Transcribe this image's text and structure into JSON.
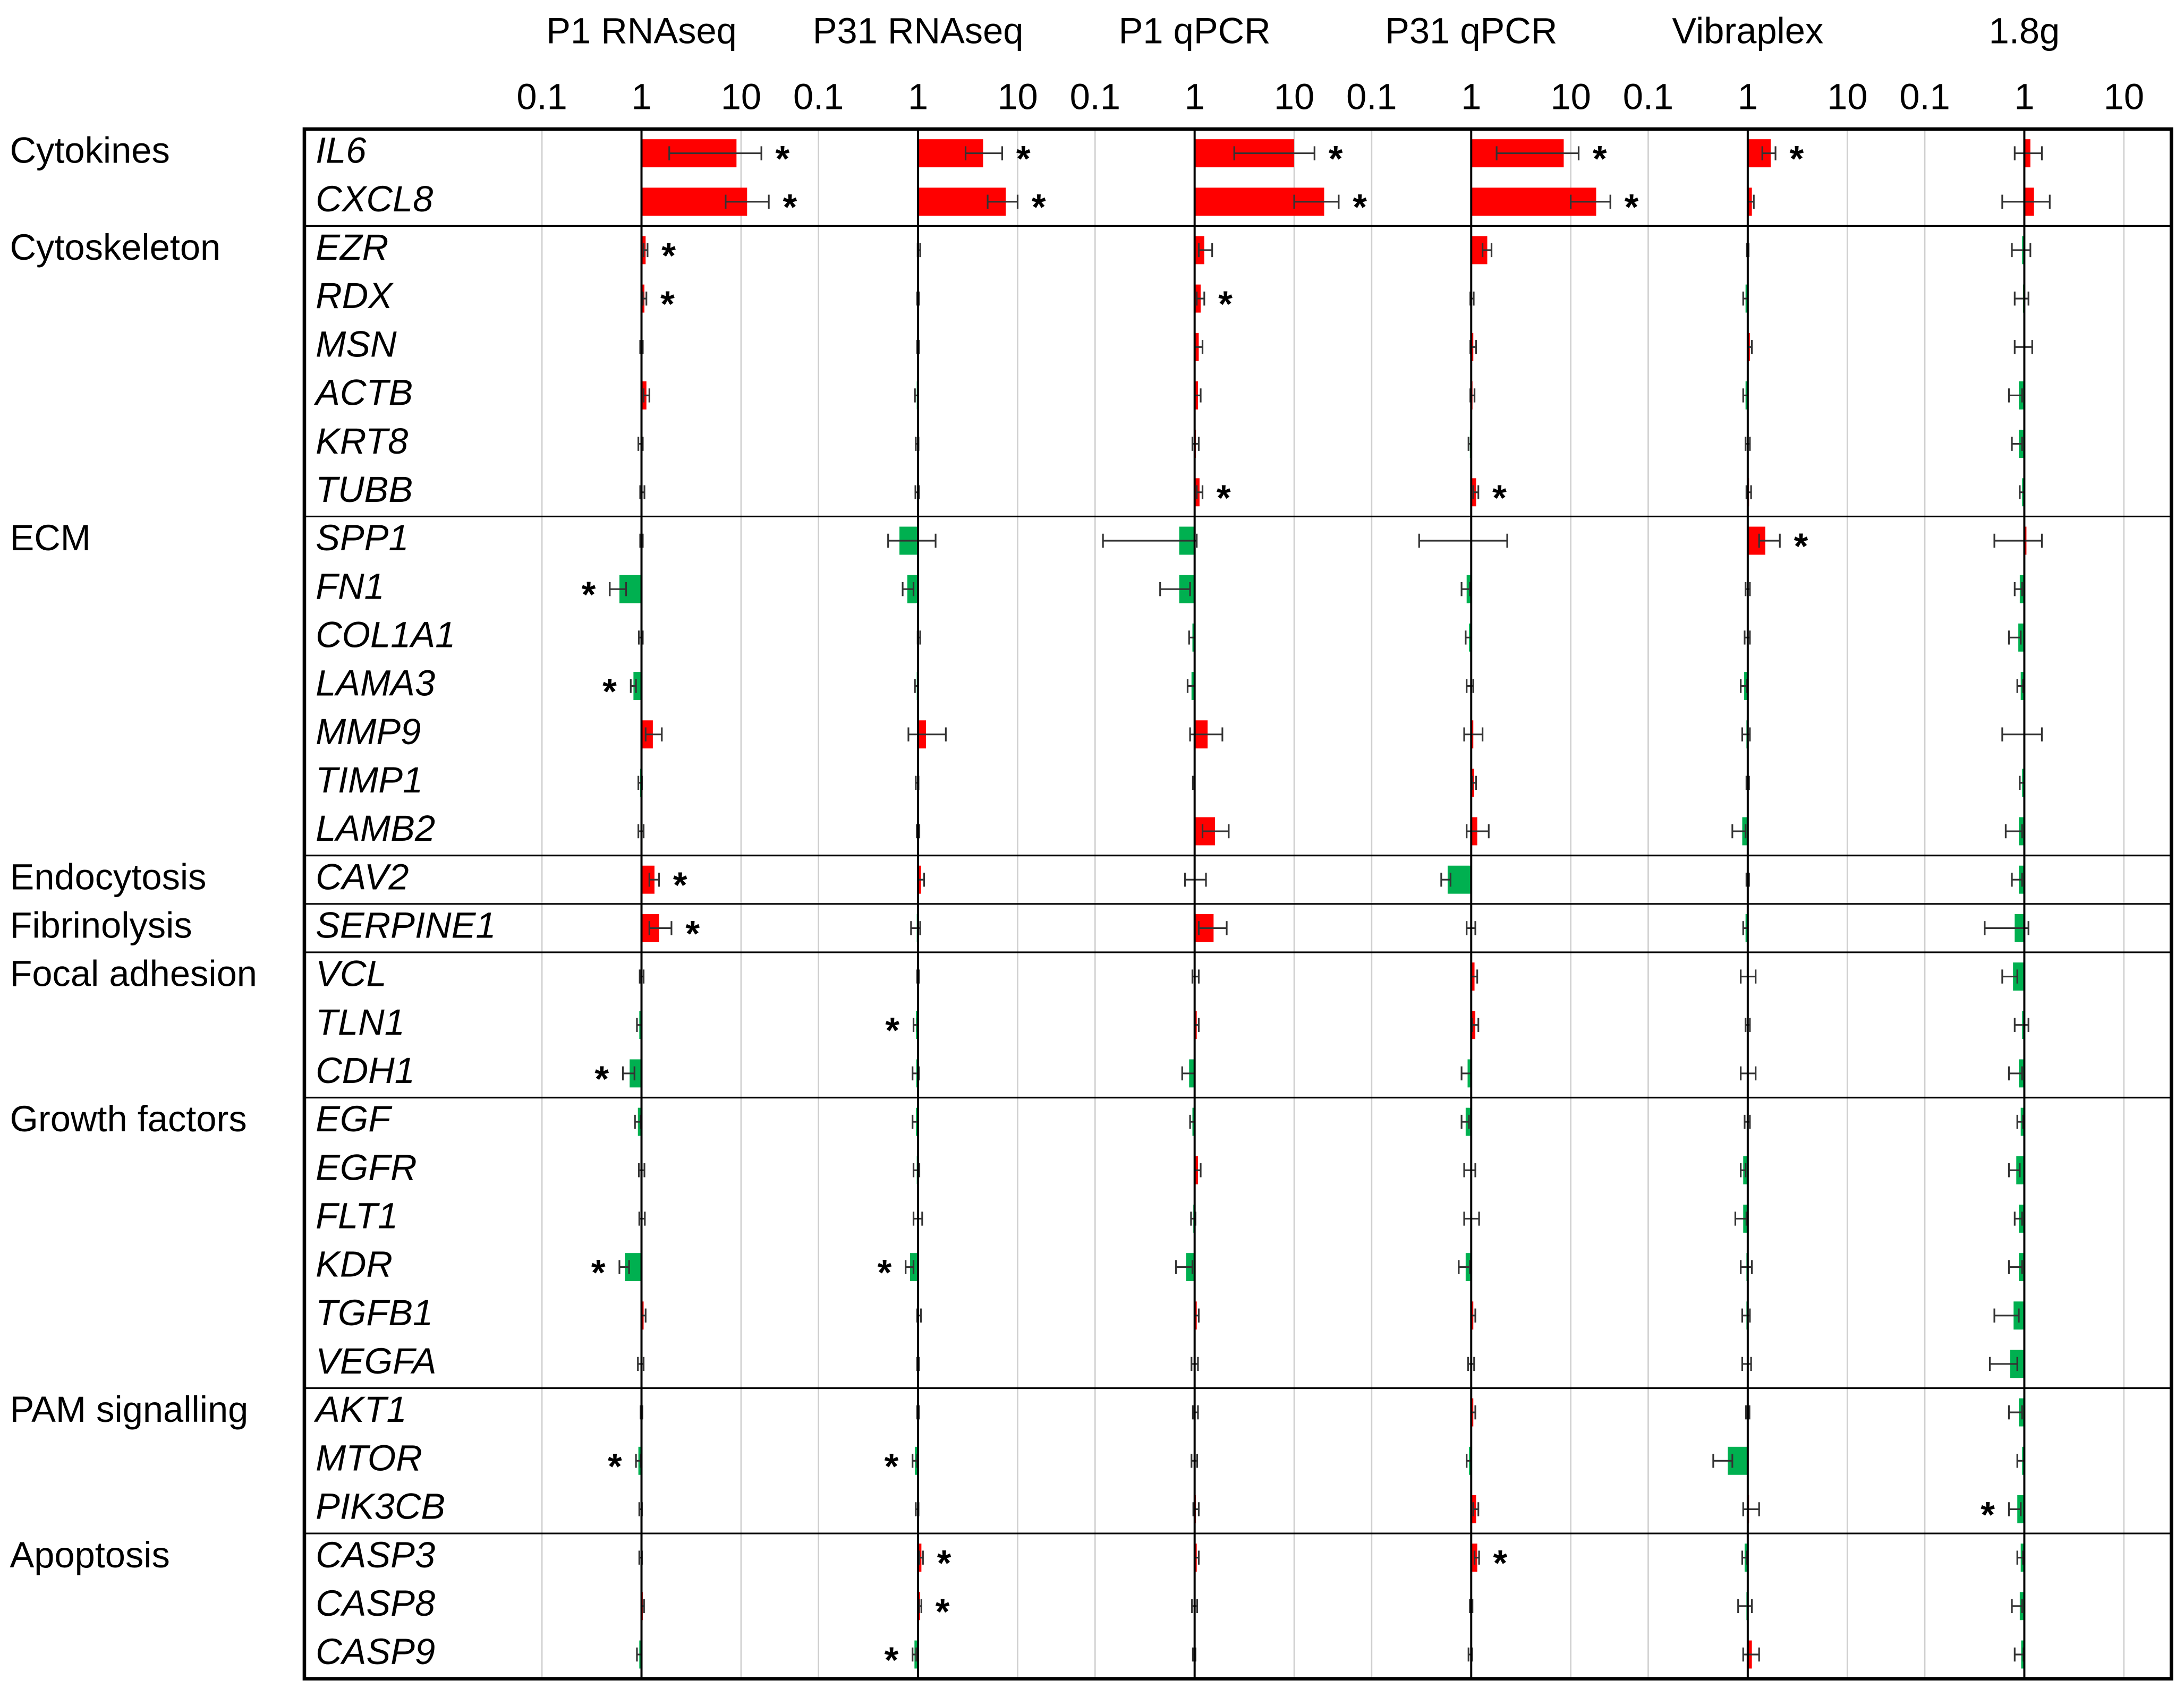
{
  "chart_data": {
    "type": "bar",
    "orientation": "horizontal",
    "x_scale": "log",
    "xlim": [
      0.05,
      30
    ],
    "xticks": [
      0.1,
      1,
      10
    ],
    "grid": true,
    "colors": {
      "increase": "#ff0000",
      "decrease": "#00b050"
    },
    "significance_marker": "*",
    "categories": [
      "IL6",
      "CXCL8",
      "EZR",
      "RDX",
      "MSN",
      "ACTB",
      "KRT8",
      "TUBB",
      "SPP1",
      "FN1",
      "COL1A1",
      "LAMA3",
      "MMP9",
      "TIMP1",
      "LAMB2",
      "CAV2",
      "SERPINE1",
      "VCL",
      "TLN1",
      "CDH1",
      "EGF",
      "EGFR",
      "FLT1",
      "KDR",
      "TGFB1",
      "VEGFA",
      "AKT1",
      "MTOR",
      "PIK3CB",
      "CASP3",
      "CASP8",
      "CASP9"
    ],
    "groups": [
      "Cytokines",
      "Cytokines",
      "Cytoskeleton",
      "Cytoskeleton",
      "Cytoskeleton",
      "Cytoskeleton",
      "Cytoskeleton",
      "Cytoskeleton",
      "ECM",
      "ECM",
      "ECM",
      "ECM",
      "ECM",
      "ECM",
      "ECM",
      "Endocytosis",
      "Fibrinolysis",
      "Focal adhesion",
      "Focal adhesion",
      "Focal adhesion",
      "Growth factors",
      "Growth factors",
      "Growth factors",
      "Growth factors",
      "Growth factors",
      "Growth factors",
      "PAM signalling",
      "PAM signalling",
      "PAM signalling",
      "Apoptosis",
      "Apoptosis",
      "Apoptosis"
    ],
    "series": [
      {
        "name": "P1 RNAseq",
        "values": [
          9,
          11.5,
          1.1,
          1.07,
          1.0,
          1.12,
          0.98,
          1.02,
          1.0,
          0.6,
          0.98,
          0.83,
          1.3,
          0.97,
          0.98,
          1.35,
          1.5,
          1.0,
          0.95,
          0.76,
          0.92,
          1.0,
          1.0,
          0.68,
          1.05,
          0.98,
          1.0,
          0.93,
          0.98,
          0.98,
          1.03,
          0.95
        ],
        "errors": [
          [
            1.9,
            16
          ],
          [
            7,
            19
          ],
          [
            1.05,
            1.15
          ],
          [
            1.03,
            1.12
          ],
          [
            0.97,
            1.03
          ],
          [
            1.05,
            1.2
          ],
          [
            0.93,
            1.03
          ],
          [
            0.97,
            1.07
          ],
          [
            0.97,
            1.03
          ],
          [
            0.48,
            0.7
          ],
          [
            0.94,
            1.03
          ],
          [
            0.78,
            0.88
          ],
          [
            1.1,
            1.6
          ],
          [
            0.93,
            1.01
          ],
          [
            0.93,
            1.05
          ],
          [
            1.2,
            1.5
          ],
          [
            1.2,
            2.0
          ],
          [
            0.96,
            1.05
          ],
          [
            0.9,
            1.0
          ],
          [
            0.65,
            0.85
          ],
          [
            0.86,
            0.98
          ],
          [
            0.94,
            1.07
          ],
          [
            0.95,
            1.08
          ],
          [
            0.6,
            0.75
          ],
          [
            1.0,
            1.1
          ],
          [
            0.92,
            1.05
          ],
          [
            0.98,
            1.02
          ],
          [
            0.88,
            0.98
          ],
          [
            0.95,
            1.01
          ],
          [
            0.95,
            1.01
          ],
          [
            1.0,
            1.06
          ],
          [
            0.9,
            1.0
          ]
        ],
        "significant": [
          true,
          true,
          true,
          true,
          false,
          false,
          false,
          false,
          false,
          true,
          false,
          true,
          false,
          false,
          false,
          true,
          true,
          false,
          false,
          true,
          false,
          false,
          false,
          true,
          false,
          false,
          false,
          true,
          false,
          false,
          false,
          false
        ]
      },
      {
        "name": "P31 RNAseq",
        "values": [
          4.5,
          7.6,
          1.02,
          1.0,
          1.0,
          0.97,
          0.98,
          0.98,
          0.65,
          0.78,
          1.02,
          0.97,
          1.2,
          0.98,
          1.0,
          1.07,
          0.97,
          1.0,
          0.95,
          0.96,
          0.95,
          0.97,
          0.98,
          0.83,
          1.02,
          1.0,
          1.0,
          0.93,
          0.98,
          1.08,
          1.05,
          0.92
        ],
        "errors": [
          [
            3,
            7
          ],
          [
            5,
            10
          ],
          [
            0.99,
            1.05
          ],
          [
            0.98,
            1.02
          ],
          [
            0.98,
            1.02
          ],
          [
            0.93,
            1.0
          ],
          [
            0.95,
            1.01
          ],
          [
            0.94,
            1.02
          ],
          [
            0.5,
            1.5
          ],
          [
            0.7,
            0.9
          ],
          [
            0.99,
            1.05
          ],
          [
            0.93,
            1.0
          ],
          [
            0.8,
            1.9
          ],
          [
            0.95,
            1.01
          ],
          [
            0.97,
            1.03
          ],
          [
            1.0,
            1.15
          ],
          [
            0.85,
            1.05
          ],
          [
            0.98,
            1.02
          ],
          [
            0.9,
            0.99
          ],
          [
            0.88,
            1.02
          ],
          [
            0.88,
            1.0
          ],
          [
            0.9,
            1.03
          ],
          [
            0.9,
            1.1
          ],
          [
            0.75,
            0.9
          ],
          [
            0.98,
            1.07
          ],
          [
            0.98,
            1.02
          ],
          [
            0.98,
            1.02
          ],
          [
            0.88,
            0.98
          ],
          [
            0.95,
            1.01
          ],
          [
            1.03,
            1.12
          ],
          [
            1.02,
            1.08
          ],
          [
            0.88,
            0.96
          ]
        ],
        "significant": [
          true,
          true,
          false,
          false,
          false,
          false,
          false,
          false,
          false,
          false,
          false,
          false,
          false,
          false,
          false,
          false,
          false,
          false,
          true,
          false,
          false,
          false,
          false,
          true,
          false,
          false,
          false,
          true,
          false,
          true,
          true,
          true
        ]
      },
      {
        "name": "P1 qPCR",
        "values": [
          10,
          20,
          1.25,
          1.15,
          1.1,
          1.08,
          1.03,
          1.12,
          0.7,
          0.7,
          0.95,
          0.93,
          1.35,
          0.98,
          1.6,
          1.02,
          1.55,
          1.0,
          1.05,
          0.88,
          0.95,
          1.08,
          0.97,
          0.82,
          1.05,
          1.0,
          1.02,
          1.0,
          1.03,
          1.05,
          1.0,
          1.0
        ],
        "errors": [
          [
            2.5,
            16
          ],
          [
            10,
            28
          ],
          [
            1.1,
            1.5
          ],
          [
            1.05,
            1.25
          ],
          [
            1.0,
            1.2
          ],
          [
            1.0,
            1.15
          ],
          [
            0.95,
            1.1
          ],
          [
            1.05,
            1.2
          ],
          [
            0.12,
            1.05
          ],
          [
            0.45,
            0.9
          ],
          [
            0.88,
            1.0
          ],
          [
            0.85,
            1.0
          ],
          [
            0.9,
            1.9
          ],
          [
            0.96,
            1.0
          ],
          [
            1.2,
            2.2
          ],
          [
            0.8,
            1.3
          ],
          [
            1.1,
            2.1
          ],
          [
            0.95,
            1.1
          ],
          [
            1.0,
            1.1
          ],
          [
            0.75,
            1.0
          ],
          [
            0.9,
            1.0
          ],
          [
            1.0,
            1.15
          ],
          [
            0.92,
            1.02
          ],
          [
            0.65,
            0.95
          ],
          [
            1.0,
            1.1
          ],
          [
            0.93,
            1.08
          ],
          [
            0.96,
            1.08
          ],
          [
            0.93,
            1.06
          ],
          [
            0.97,
            1.1
          ],
          [
            1.0,
            1.1
          ],
          [
            0.94,
            1.06
          ],
          [
            0.96,
            1.02
          ]
        ],
        "significant": [
          true,
          true,
          false,
          true,
          false,
          false,
          false,
          true,
          false,
          false,
          false,
          false,
          false,
          false,
          false,
          false,
          false,
          false,
          false,
          false,
          false,
          false,
          false,
          false,
          false,
          false,
          false,
          false,
          false,
          false,
          false,
          false
        ]
      },
      {
        "name": "P31 qPCR",
        "values": [
          8.5,
          18,
          1.45,
          1.02,
          1.05,
          1.03,
          0.97,
          1.12,
          1.0,
          0.9,
          0.95,
          0.98,
          1.05,
          1.07,
          1.15,
          0.58,
          1.0,
          1.08,
          1.1,
          0.92,
          0.88,
          1.0,
          1.02,
          0.88,
          1.05,
          1.0,
          1.05,
          0.95,
          1.12,
          1.15,
          1.0,
          0.98
        ],
        "errors": [
          [
            1.8,
            12
          ],
          [
            10,
            25
          ],
          [
            1.3,
            1.6
          ],
          [
            0.98,
            1.06
          ],
          [
            0.98,
            1.12
          ],
          [
            0.98,
            1.08
          ],
          [
            0.94,
            1.0
          ],
          [
            1.05,
            1.18
          ],
          [
            0.3,
            2.3
          ],
          [
            0.8,
            0.97
          ],
          [
            0.88,
            1.0
          ],
          [
            0.9,
            1.05
          ],
          [
            0.85,
            1.3
          ],
          [
            1.02,
            1.12
          ],
          [
            0.9,
            1.5
          ],
          [
            0.5,
            0.62
          ],
          [
            0.9,
            1.1
          ],
          [
            1.0,
            1.15
          ],
          [
            1.02,
            1.18
          ],
          [
            0.8,
            1.0
          ],
          [
            0.8,
            0.95
          ],
          [
            0.85,
            1.1
          ],
          [
            0.85,
            1.2
          ],
          [
            0.75,
            0.97
          ],
          [
            1.0,
            1.1
          ],
          [
            0.93,
            1.07
          ],
          [
            1.0,
            1.1
          ],
          [
            0.9,
            1.0
          ],
          [
            1.05,
            1.18
          ],
          [
            1.08,
            1.2
          ],
          [
            0.97,
            1.03
          ],
          [
            0.94,
            1.02
          ]
        ],
        "significant": [
          true,
          true,
          false,
          false,
          false,
          false,
          false,
          true,
          false,
          false,
          false,
          false,
          false,
          false,
          false,
          false,
          false,
          false,
          false,
          false,
          false,
          false,
          false,
          false,
          false,
          false,
          false,
          false,
          false,
          true,
          false,
          false
        ]
      },
      {
        "name": "Vibraplex",
        "values": [
          1.7,
          1.1,
          1.0,
          0.95,
          1.05,
          0.95,
          1.0,
          1.03,
          1.5,
          1.0,
          1.0,
          0.92,
          0.97,
          1.0,
          0.88,
          1.0,
          0.95,
          1.0,
          1.0,
          1.0,
          1.0,
          0.9,
          0.9,
          0.97,
          0.97,
          0.98,
          1.0,
          0.63,
          1.03,
          0.93,
          0.97,
          1.1
        ],
        "errors": [
          [
            1.4,
            1.9
          ],
          [
            1.0,
            1.15
          ],
          [
            0.98,
            1.02
          ],
          [
            0.9,
            1.0
          ],
          [
            1.0,
            1.1
          ],
          [
            0.9,
            1.0
          ],
          [
            0.95,
            1.05
          ],
          [
            0.97,
            1.08
          ],
          [
            1.3,
            2.1
          ],
          [
            0.95,
            1.05
          ],
          [
            0.93,
            1.05
          ],
          [
            0.85,
            0.98
          ],
          [
            0.88,
            1.05
          ],
          [
            0.97,
            1.03
          ],
          [
            0.7,
            0.95
          ],
          [
            0.97,
            1.03
          ],
          [
            0.9,
            1.0
          ],
          [
            0.85,
            1.2
          ],
          [
            0.95,
            1.05
          ],
          [
            0.85,
            1.2
          ],
          [
            0.93,
            1.05
          ],
          [
            0.85,
            0.95
          ],
          [
            0.75,
            0.97
          ],
          [
            0.85,
            1.1
          ],
          [
            0.88,
            1.05
          ],
          [
            0.88,
            1.08
          ],
          [
            0.96,
            1.04
          ],
          [
            0.45,
            0.7
          ],
          [
            0.9,
            1.3
          ],
          [
            0.88,
            0.98
          ],
          [
            0.8,
            1.1
          ],
          [
            0.9,
            1.3
          ]
        ],
        "significant": [
          true,
          false,
          false,
          false,
          false,
          false,
          false,
          false,
          true,
          false,
          false,
          false,
          false,
          false,
          false,
          false,
          false,
          false,
          false,
          false,
          false,
          false,
          false,
          false,
          false,
          false,
          false,
          false,
          false,
          false,
          false,
          false
        ]
      },
      {
        "name": "1.8g",
        "values": [
          1.15,
          1.25,
          0.95,
          0.97,
          1.0,
          0.88,
          0.88,
          0.95,
          1.05,
          0.9,
          0.87,
          0.92,
          1.0,
          0.95,
          0.88,
          0.88,
          0.8,
          0.77,
          0.95,
          0.88,
          0.92,
          0.83,
          0.88,
          0.88,
          0.78,
          0.72,
          0.88,
          0.95,
          0.85,
          0.92,
          0.9,
          0.93
        ],
        "errors": [
          [
            0.8,
            1.5
          ],
          [
            0.6,
            1.8
          ],
          [
            0.75,
            1.15
          ],
          [
            0.8,
            1.1
          ],
          [
            0.8,
            1.2
          ],
          [
            0.7,
            0.95
          ],
          [
            0.75,
            0.95
          ],
          [
            0.9,
            1.0
          ],
          [
            0.5,
            1.5
          ],
          [
            0.8,
            0.95
          ],
          [
            0.7,
            0.92
          ],
          [
            0.85,
            0.97
          ],
          [
            0.6,
            1.5
          ],
          [
            0.9,
            1.0
          ],
          [
            0.65,
            0.95
          ],
          [
            0.75,
            0.95
          ],
          [
            0.4,
            1.1
          ],
          [
            0.6,
            0.85
          ],
          [
            0.8,
            1.1
          ],
          [
            0.7,
            0.95
          ],
          [
            0.85,
            0.97
          ],
          [
            0.7,
            0.9
          ],
          [
            0.8,
            0.95
          ],
          [
            0.7,
            0.95
          ],
          [
            0.5,
            0.88
          ],
          [
            0.45,
            0.85
          ],
          [
            0.7,
            0.95
          ],
          [
            0.85,
            1.0
          ],
          [
            0.7,
            0.92
          ],
          [
            0.85,
            0.97
          ],
          [
            0.75,
            0.95
          ],
          [
            0.8,
            0.98
          ]
        ],
        "significant": [
          false,
          false,
          false,
          false,
          false,
          false,
          false,
          false,
          false,
          false,
          false,
          false,
          false,
          false,
          false,
          false,
          false,
          false,
          false,
          false,
          false,
          false,
          false,
          false,
          false,
          false,
          false,
          false,
          true,
          false,
          false,
          false
        ]
      }
    ]
  }
}
